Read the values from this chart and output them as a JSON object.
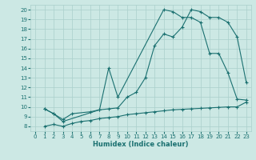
{
  "xlabel": "Humidex (Indice chaleur)",
  "background_color": "#cce8e4",
  "grid_color": "#aacfcb",
  "line_color": "#1a7070",
  "xlim": [
    -0.5,
    23.5
  ],
  "ylim": [
    7.5,
    20.5
  ],
  "xticks": [
    0,
    1,
    2,
    3,
    4,
    5,
    6,
    7,
    8,
    9,
    10,
    11,
    12,
    13,
    14,
    15,
    16,
    17,
    18,
    19,
    20,
    21,
    22,
    23
  ],
  "yticks": [
    8,
    9,
    10,
    11,
    12,
    13,
    14,
    15,
    16,
    17,
    18,
    19,
    20
  ],
  "line1_x": [
    1,
    2,
    3,
    4,
    6,
    7,
    8,
    9,
    10,
    11,
    12,
    13,
    14,
    15,
    16,
    17,
    18,
    19,
    20,
    21,
    22,
    23
  ],
  "line1_y": [
    9.8,
    9.3,
    8.7,
    9.3,
    9.5,
    9.7,
    9.8,
    9.9,
    11.0,
    11.5,
    13.0,
    16.3,
    17.5,
    17.2,
    18.2,
    20.0,
    19.8,
    19.2,
    19.2,
    18.7,
    17.2,
    12.5
  ],
  "line2_x": [
    1,
    2,
    3,
    7,
    8,
    9,
    14,
    15,
    16,
    17,
    18,
    19,
    20,
    21,
    22,
    23
  ],
  "line2_y": [
    9.8,
    9.3,
    8.5,
    9.7,
    14.0,
    11.0,
    20.0,
    19.8,
    19.2,
    19.2,
    18.7,
    15.5,
    15.5,
    13.5,
    10.8,
    10.7
  ],
  "line3_x": [
    1,
    2,
    3,
    4,
    5,
    6,
    7,
    8,
    9,
    10,
    11,
    12,
    13,
    14,
    15,
    16,
    17,
    18,
    19,
    20,
    21,
    22,
    23
  ],
  "line3_y": [
    8.0,
    8.2,
    8.0,
    8.3,
    8.5,
    8.6,
    8.8,
    8.9,
    9.0,
    9.2,
    9.3,
    9.4,
    9.5,
    9.6,
    9.7,
    9.75,
    9.8,
    9.85,
    9.9,
    9.95,
    10.0,
    10.0,
    10.5
  ]
}
